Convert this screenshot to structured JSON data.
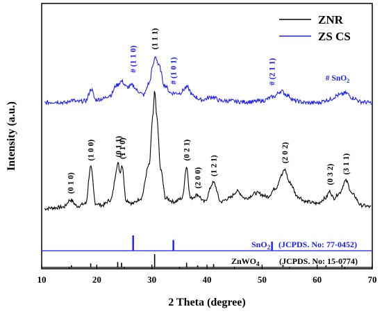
{
  "chart_data": {
    "type": "line",
    "xlabel": "2 Theta (degree)",
    "ylabel": "Intensity (a.u.)",
    "xlim": [
      10,
      70
    ],
    "xticks": [
      "10",
      "20",
      "30",
      "40",
      "50",
      "60",
      "70"
    ],
    "yticks_shown": false,
    "grid": false,
    "legend_position": "top-right",
    "colors": {
      "ZNR": "#000000",
      "ZS CS": "#1a1aff",
      "SnO2": "#1a1aff",
      "ZnWO4": "#000000"
    },
    "series": [
      {
        "name": "ZNR",
        "x": [
          10.5,
          12,
          14,
          15.2,
          16.5,
          18,
          18.9,
          19.8,
          21,
          22.5,
          23.9,
          24.2,
          24.6,
          25.3,
          26.5,
          28,
          29.5,
          30.2,
          30.5,
          30.9,
          31.6,
          32.5,
          34,
          35.5,
          36.3,
          37,
          38.3,
          39.5,
          41.2,
          42.5,
          44,
          45.5,
          47,
          49,
          51,
          52.5,
          53.5,
          54.1,
          55,
          56.5,
          58,
          60,
          61.5,
          62.3,
          63,
          64,
          65.2,
          66.5,
          68,
          69.8
        ],
        "y": [
          10,
          11,
          12,
          20,
          13,
          16,
          58,
          16,
          14,
          20,
          62,
          52,
          60,
          20,
          16,
          22,
          60,
          118,
          145,
          115,
          55,
          22,
          18,
          22,
          58,
          22,
          26,
          18,
          40,
          18,
          22,
          30,
          22,
          28,
          24,
          34,
          48,
          55,
          40,
          24,
          18,
          16,
          22,
          30,
          22,
          28,
          42,
          26,
          14,
          12
        ],
        "y_units": "relative intensity (no y scale shown)"
      },
      {
        "name": "ZS CS",
        "x": [
          10.5,
          12.5,
          14.5,
          15.4,
          16.5,
          18,
          19,
          19.8,
          21,
          22.5,
          23.6,
          24.5,
          25.5,
          26.5,
          27.5,
          28.5,
          29.5,
          30.2,
          30.6,
          31.3,
          32.3,
          33.5,
          35,
          36.4,
          37.5,
          39,
          41,
          42.5,
          44,
          46,
          48,
          50,
          52,
          53.5,
          54.5,
          56,
          58,
          60,
          62,
          64,
          65.2,
          66.5,
          68,
          69.8
        ],
        "y": [
          10,
          11,
          10,
          13,
          11,
          12,
          24,
          13,
          14,
          18,
          28,
          32,
          26,
          28,
          22,
          18,
          30,
          48,
          58,
          48,
          28,
          20,
          20,
          26,
          17,
          13,
          16,
          12,
          12,
          11,
          11,
          12,
          16,
          22,
          18,
          12,
          10,
          10,
          13,
          18,
          20,
          15,
          11,
          10
        ],
        "y_units": "relative intensity (no y scale shown)"
      }
    ],
    "reference_patterns": [
      {
        "name": "SnO2",
        "label": "SnO",
        "sub": "2",
        "card": "(JCPDS. No: 77-0452)",
        "positions": [
          26.6,
          33.9,
          51.8
        ],
        "heights": [
          1.0,
          0.7,
          0.6
        ]
      },
      {
        "name": "ZnWO4",
        "label": "ZnWO",
        "sub": "4",
        "card": "(JCPDS. No: 15-0774)",
        "positions": [
          15.4,
          18.9,
          23.8,
          24.5,
          30.5,
          36.3,
          38.3,
          41.2,
          53.8,
          61.6,
          64.5
        ],
        "heights": [
          0.15,
          0.3,
          0.4,
          0.35,
          1.0,
          0.35,
          0.15,
          0.25,
          0.2,
          0.15,
          0.2
        ]
      }
    ],
    "peak_labels_zs": [
      {
        "text": "# (1 1 0)",
        "x": 26.6,
        "y": 38
      },
      {
        "text": "(1 1 1)",
        "x": 30.5,
        "y": 62
      },
      {
        "text": "# (1 0 1)",
        "x": 33.9,
        "y": 26
      },
      {
        "text": "# (2 1 1)",
        "x": 51.8,
        "y": 25
      },
      {
        "text": "# SnO",
        "sub": "2",
        "x": 64.3,
        "y": 30
      }
    ],
    "peak_labels_znr": [
      {
        "text": "(0 1 0)",
        "x": 15.2,
        "y": 24
      },
      {
        "text": "(1 0 0)",
        "x": 18.9,
        "y": 62
      },
      {
        "text": "(0 1 1)",
        "x": 23.9,
        "y": 66
      },
      {
        "text": "(1 1 0)",
        "x": 24.6,
        "y": 64
      },
      {
        "text": "(0 2 1)",
        "x": 36.3,
        "y": 62
      },
      {
        "text": "(2 0 0)",
        "x": 38.3,
        "y": 30
      },
      {
        "text": "(1 2 1)",
        "x": 41.2,
        "y": 44
      },
      {
        "text": "(2 0 2)",
        "x": 54.1,
        "y": 59
      },
      {
        "text": "(0 3 2)",
        "x": 62.3,
        "y": 34
      },
      {
        "text": "(3 1 1)",
        "x": 65.2,
        "y": 46
      }
    ]
  }
}
